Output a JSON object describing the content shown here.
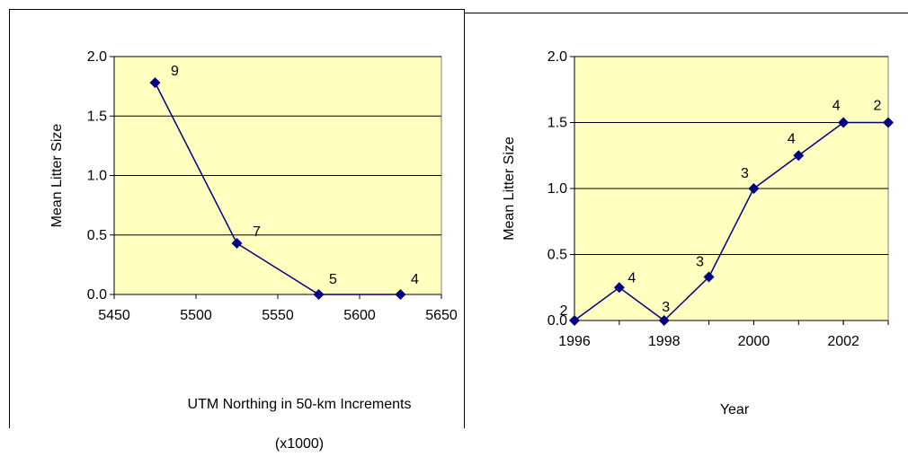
{
  "chart_data": [
    {
      "type": "line",
      "xlabel": "UTM Northing in 50-km Increments",
      "xlabel_line2": "(x1000)",
      "ylabel": "Mean Litter Size",
      "xlim": [
        5450,
        5650
      ],
      "ylim": [
        0,
        2.0
      ],
      "xticks": [
        "5450",
        "5500",
        "5550",
        "5600",
        "5650"
      ],
      "yticks": [
        "0.0",
        "0.5",
        "1.0",
        "1.5",
        "2.0"
      ],
      "grid": true,
      "plot_background": "#ffffc0",
      "series": [
        {
          "color": "#000080",
          "x": [
            5475,
            5525,
            5575,
            5625
          ],
          "y": [
            1.78,
            0.43,
            0.0,
            0.0
          ],
          "labels": [
            "9",
            "7",
            "5",
            "4"
          ]
        }
      ]
    },
    {
      "type": "line",
      "xlabel": "Year",
      "ylabel": "Mean Litter Size",
      "xlim": [
        1996,
        2003
      ],
      "ylim": [
        0,
        2.0
      ],
      "xticks": [
        "1996",
        "1998",
        "2000",
        "2002"
      ],
      "yticks": [
        "0.0",
        "0.5",
        "1.0",
        "1.5",
        "2.0"
      ],
      "grid": true,
      "plot_background": "#ffffc0",
      "series": [
        {
          "color": "#000080",
          "x": [
            1996,
            1997,
            1998,
            1999,
            2000,
            2001,
            2002,
            2003
          ],
          "y": [
            0.0,
            0.25,
            0.0,
            0.33,
            1.0,
            1.25,
            1.5,
            1.5
          ],
          "labels": [
            "2",
            "4",
            "3",
            "3",
            "3",
            "4",
            "4",
            "2"
          ]
        }
      ]
    }
  ]
}
